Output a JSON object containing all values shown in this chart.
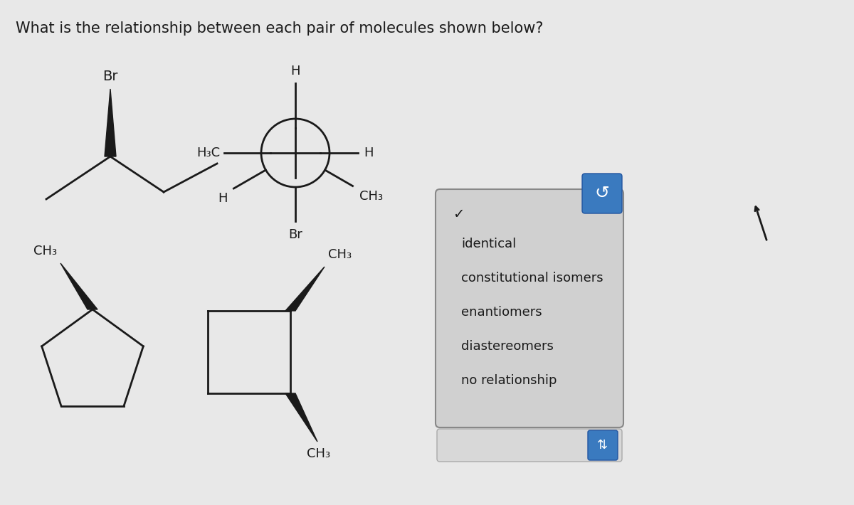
{
  "title": "What is the relationship between each pair of molecules shown below?",
  "title_fontsize": 15,
  "background_color": "#e8e8e8",
  "dropdown_bg": "#d0d0d0",
  "dropdown_border": "#aaaaaa",
  "dropdown_items": [
    "identical",
    "constitutional isomers",
    "enantiomers",
    "diastereomers",
    "no relationship"
  ],
  "text_color": "#1a1a1a",
  "line_color": "#1a1a1a",
  "blue_btn_color": "#3a7abf"
}
